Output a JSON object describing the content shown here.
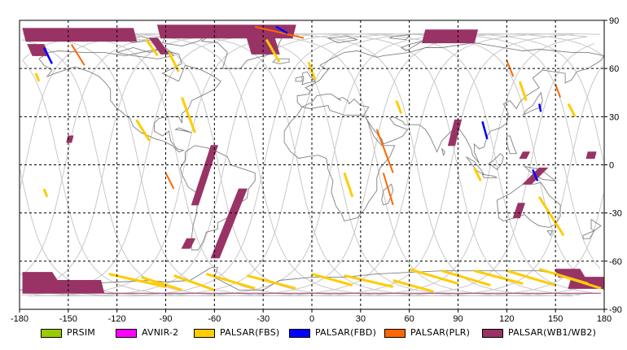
{
  "map": {
    "x_ticks": [
      "-180",
      "-150",
      "-120",
      "-90",
      "-60",
      "-30",
      "0",
      "30",
      "60",
      "90",
      "120",
      "150",
      "180"
    ],
    "y_ticks": [
      "90",
      "60",
      "30",
      "0",
      "-30",
      "-60",
      "-90"
    ],
    "lon_range": [
      -180,
      180
    ],
    "lat_range": [
      -90,
      90
    ],
    "grid": true,
    "grid_style": "dashed"
  },
  "legend": {
    "items": [
      {
        "label": "PRSIM",
        "color": "#99cc00"
      },
      {
        "label": "AVNIR-2",
        "color": "#ff00ff"
      },
      {
        "label": "PALSAR(FBS)",
        "color": "#ffcc00"
      },
      {
        "label": "PALSAR(FBD)",
        "color": "#0000ff"
      },
      {
        "label": "PALSAR(PLR)",
        "color": "#ff6600"
      },
      {
        "label": "PALSAR(WB1/WB2)",
        "color": "#993366"
      }
    ]
  },
  "observations": {
    "wb": [
      {
        "lon": [
          -178,
          -110,
          -108,
          -176
        ],
        "lat": [
          85,
          85,
          77,
          77
        ]
      },
      {
        "lon": [
          -95,
          -10,
          -12,
          -93
        ],
        "lat": [
          87,
          87,
          79,
          79
        ]
      },
      {
        "lon": [
          -100,
          -95,
          -88,
          -93
        ],
        "lat": [
          79,
          79,
          69,
          69
        ]
      },
      {
        "lon": [
          -42,
          -25,
          -20,
          -37
        ],
        "lat": [
          86,
          86,
          69,
          69
        ]
      },
      {
        "lon": [
          -175,
          -165,
          -162,
          -172
        ],
        "lat": [
          75,
          75,
          68,
          68
        ]
      },
      {
        "lon": [
          70,
          102,
          100,
          68
        ],
        "lat": [
          84,
          84,
          76,
          76
        ]
      },
      {
        "lon": [
          -62,
          -58,
          -70,
          -74
        ],
        "lat": [
          12,
          12,
          -25,
          -25
        ]
      },
      {
        "lon": [
          -45,
          -40,
          -57,
          -62
        ],
        "lat": [
          -15,
          -15,
          -58,
          -58
        ]
      },
      {
        "lon": [
          -77,
          -72,
          -75,
          -80
        ],
        "lat": [
          -46,
          -46,
          -52,
          -52
        ]
      },
      {
        "lon": [
          88,
          92,
          88,
          84
        ],
        "lat": [
          28,
          28,
          12,
          12
        ]
      },
      {
        "lon": [
          130,
          134,
          132,
          128
        ],
        "lat": [
          8,
          8,
          4,
          4
        ]
      },
      {
        "lon": [
          140,
          145,
          135,
          130
        ],
        "lat": [
          -2,
          -2,
          -12,
          -12
        ]
      },
      {
        "lon": [
          127,
          131,
          128,
          124
        ],
        "lat": [
          -24,
          -24,
          -33,
          -33
        ]
      },
      {
        "lon": [
          -150,
          -147,
          -148,
          -151
        ],
        "lat": [
          18,
          18,
          14,
          14
        ]
      },
      {
        "lon": [
          170,
          175,
          174,
          169
        ],
        "lat": [
          8,
          8,
          4,
          4
        ]
      },
      {
        "lon": [
          -178,
          -160,
          -155,
          -178
        ],
        "lat": [
          -67,
          -67,
          -75,
          -75
        ]
      },
      {
        "lon": [
          -178,
          -130,
          -128,
          -178
        ],
        "lat": [
          -72,
          -72,
          -80,
          -80
        ]
      },
      {
        "lon": [
          150,
          165,
          168,
          152
        ],
        "lat": [
          -65,
          -65,
          -70,
          -70
        ]
      },
      {
        "lon": [
          160,
          180,
          180,
          158
        ],
        "lat": [
          -70,
          -70,
          -77,
          -77
        ]
      },
      {
        "lon": [
          -128,
          165,
          178,
          -125
        ],
        "lat": [
          -80,
          -80,
          -80,
          -80
        ]
      }
    ],
    "fbs": [
      {
        "lon": [
          -102,
          -95
        ],
        "lat": [
          78,
          68
        ]
      },
      {
        "lon": [
          -88,
          -82
        ],
        "lat": [
          70,
          58
        ]
      },
      {
        "lon": [
          -80,
          -72
        ],
        "lat": [
          42,
          20
        ]
      },
      {
        "lon": [
          -108,
          -100
        ],
        "lat": [
          28,
          15
        ]
      },
      {
        "lon": [
          -170,
          -168
        ],
        "lat": [
          57,
          52
        ]
      },
      {
        "lon": [
          -165,
          -163
        ],
        "lat": [
          -15,
          -20
        ]
      },
      {
        "lon": [
          -28,
          -20
        ],
        "lat": [
          78,
          64
        ]
      },
      {
        "lon": [
          -2,
          2
        ],
        "lat": [
          64,
          53
        ]
      },
      {
        "lon": [
          52,
          55
        ],
        "lat": [
          40,
          32
        ]
      },
      {
        "lon": [
          100,
          104
        ],
        "lat": [
          -2,
          -10
        ]
      },
      {
        "lon": [
          128,
          132
        ],
        "lat": [
          52,
          40
        ]
      },
      {
        "lon": [
          158,
          162
        ],
        "lat": [
          38,
          30
        ]
      },
      {
        "lon": [
          140,
          155
        ],
        "lat": [
          -20,
          -44
        ]
      },
      {
        "lon": [
          20,
          25
        ],
        "lat": [
          -5,
          -20
        ]
      },
      {
        "lon": [
          -125,
          -90
        ],
        "lat": [
          -68,
          -76
        ]
      },
      {
        "lon": [
          -105,
          -80
        ],
        "lat": [
          -70,
          -78
        ]
      },
      {
        "lon": [
          -85,
          -60
        ],
        "lat": [
          -69,
          -78
        ]
      },
      {
        "lon": [
          -65,
          -35
        ],
        "lat": [
          -68,
          -77
        ]
      },
      {
        "lon": [
          -40,
          -10
        ],
        "lat": [
          -69,
          -77
        ]
      },
      {
        "lon": [
          0,
          25
        ],
        "lat": [
          -68,
          -75
        ]
      },
      {
        "lon": [
          20,
          50
        ],
        "lat": [
          -69,
          -76
        ]
      },
      {
        "lon": [
          60,
          90
        ],
        "lat": [
          -65,
          -74
        ]
      },
      {
        "lon": [
          80,
          110
        ],
        "lat": [
          -66,
          -75
        ]
      },
      {
        "lon": [
          100,
          130
        ],
        "lat": [
          -66,
          -74
        ]
      },
      {
        "lon": [
          120,
          150
        ],
        "lat": [
          -66,
          -75
        ]
      },
      {
        "lon": [
          140,
          170
        ],
        "lat": [
          -65,
          -74
        ]
      },
      {
        "lon": [
          50,
          75
        ],
        "lat": [
          -72,
          -79
        ]
      },
      {
        "lon": [
          150,
          178
        ],
        "lat": [
          -68,
          -77
        ]
      }
    ],
    "fbd": [
      {
        "lon": [
          -165,
          -160
        ],
        "lat": [
          73,
          63
        ]
      },
      {
        "lon": [
          -22,
          -15
        ],
        "lat": [
          86,
          82
        ]
      },
      {
        "lon": [
          105,
          108
        ],
        "lat": [
          27,
          16
        ]
      },
      {
        "lon": [
          136,
          139
        ],
        "lat": [
          -3,
          -10
        ]
      },
      {
        "lon": [
          140,
          141
        ],
        "lat": [
          38,
          33
        ]
      }
    ],
    "plr": [
      {
        "lon": [
          -148,
          -140
        ],
        "lat": [
          75,
          62
        ]
      },
      {
        "lon": [
          -35,
          -5
        ],
        "lat": [
          86,
          79
        ]
      },
      {
        "lon": [
          40,
          50
        ],
        "lat": [
          22,
          -5
        ]
      },
      {
        "lon": [
          44,
          50
        ],
        "lat": [
          -5,
          -25
        ]
      },
      {
        "lon": [
          120,
          124
        ],
        "lat": [
          65,
          55
        ]
      },
      {
        "lon": [
          150,
          153
        ],
        "lat": [
          50,
          42
        ]
      },
      {
        "lon": [
          -90,
          -85
        ],
        "lat": [
          -5,
          -15
        ]
      }
    ]
  }
}
